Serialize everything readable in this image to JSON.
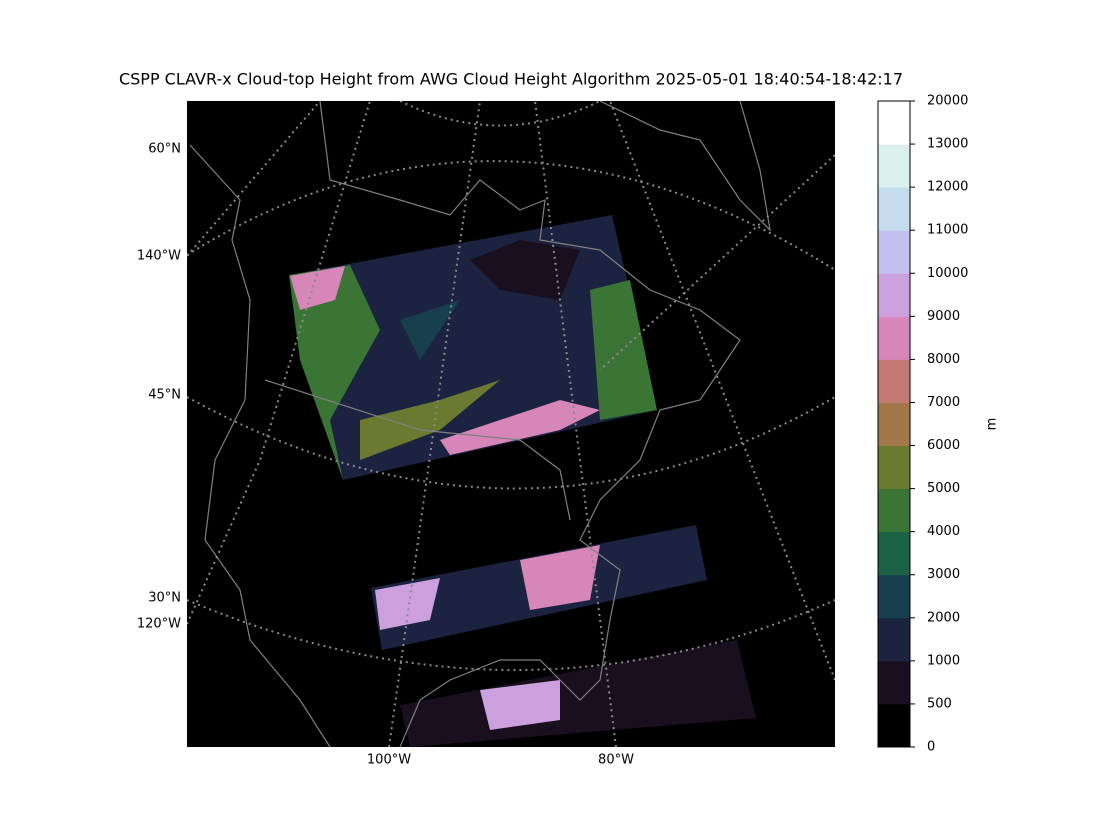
{
  "title": "CSPP CLAVR-x Cloud-top Height from AWG Cloud Height Algorithm 2025-05-01 18:40:54-18:42:17",
  "map": {
    "left_labels": [
      "60°N",
      "140°W",
      "45°N",
      "30°N",
      "120°W"
    ],
    "bottom_labels": [
      "100°W",
      "80°W"
    ]
  },
  "colorbar": {
    "label": "m",
    "ticks": [
      0,
      500,
      1000,
      2000,
      3000,
      4000,
      5000,
      6000,
      7000,
      8000,
      9000,
      10000,
      11000,
      12000,
      13000,
      20000
    ],
    "colors": [
      "#000000",
      "#1a0f1f",
      "#1c2340",
      "#173f4d",
      "#1b6247",
      "#3a7535",
      "#6b7a30",
      "#a2784a",
      "#c47a74",
      "#d686b8",
      "#cca0df",
      "#c3c0ef",
      "#c5dcee",
      "#daf0ec",
      "#ffffff"
    ]
  }
}
